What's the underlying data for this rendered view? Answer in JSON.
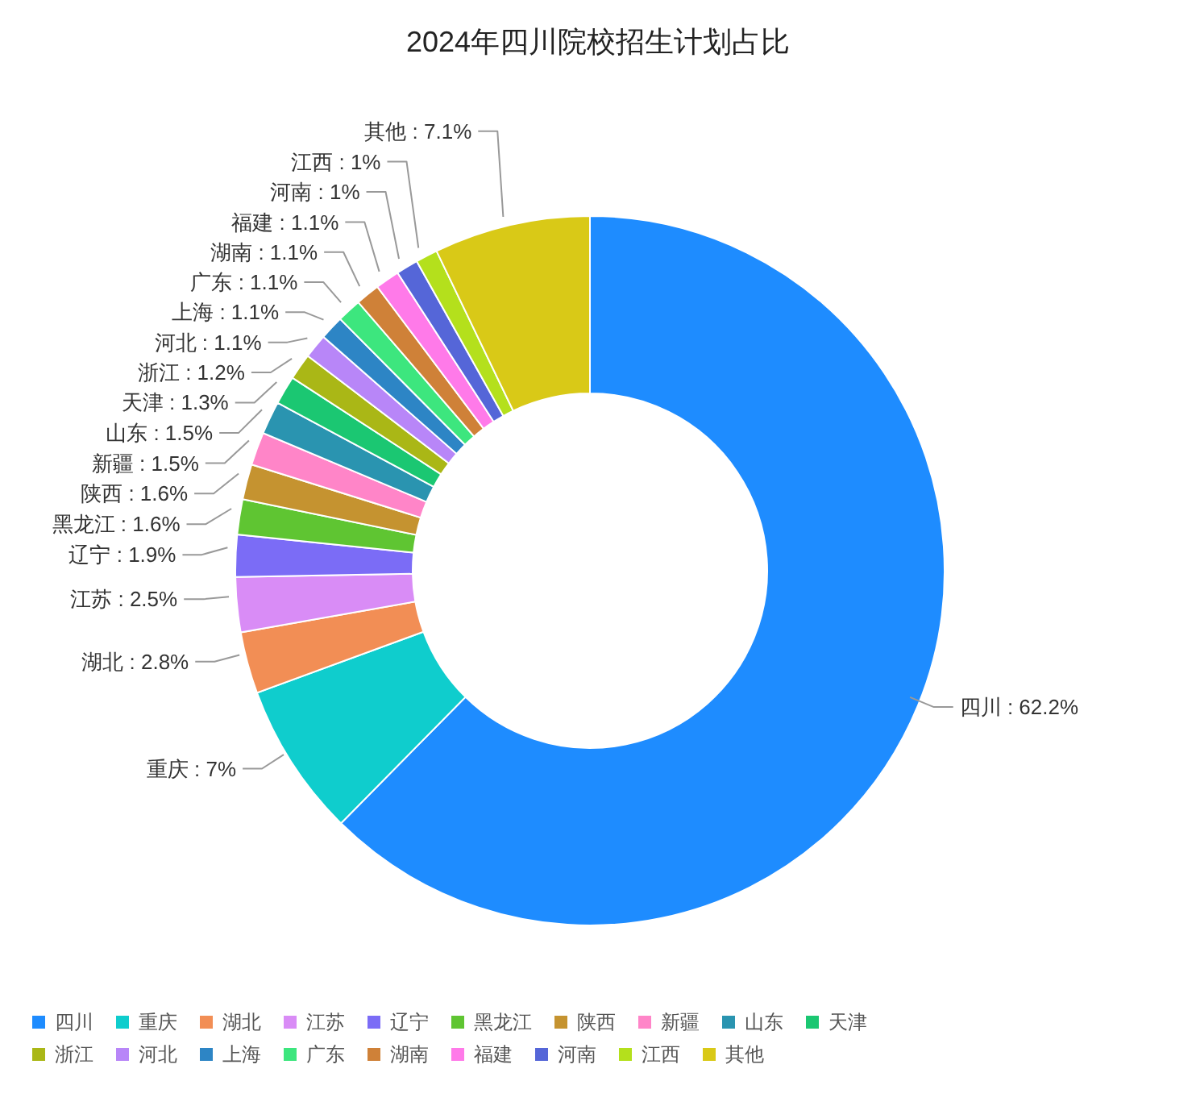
{
  "chart_data": {
    "type": "donut",
    "title": "2024年四川院校招生计划占比",
    "categories": [
      "四川",
      "重庆",
      "湖北",
      "江苏",
      "辽宁",
      "黑龙江",
      "陕西",
      "新疆",
      "山东",
      "天津",
      "浙江",
      "河北",
      "上海",
      "广东",
      "湖南",
      "福建",
      "河南",
      "江西",
      "其他"
    ],
    "values": [
      62.2,
      7,
      2.8,
      2.5,
      1.9,
      1.6,
      1.6,
      1.5,
      1.5,
      1.3,
      1.2,
      1.1,
      1.1,
      1.1,
      1.1,
      1.1,
      1,
      1,
      7.1
    ],
    "colors": [
      "#1e8cff",
      "#0fcdcd",
      "#f28e55",
      "#d98cf6",
      "#7b6cf6",
      "#5fc532",
      "#c59330",
      "#ff85c8",
      "#2a94b0",
      "#1bc772",
      "#aab716",
      "#b886f8",
      "#2d85c5",
      "#3de67e",
      "#cf8138",
      "#ff7ae9",
      "#5566d8",
      "#b4e01c",
      "#d9c917"
    ],
    "value_labels": [
      ": 62.2%",
      ": 7%",
      ": 2.8%",
      ": 2.5%",
      ": 1.9%",
      ": 1.6%",
      ": 1.6%",
      ": 1.5%",
      ": 1.5%",
      ": 1.3%",
      ": 1.2%",
      ": 1.1%",
      ": 1.1%",
      ": 1.1%",
      ": 1.1%",
      ": 1.1%",
      ": 1%",
      ": 1%",
      ": 7.1%"
    ],
    "legend": "bottom"
  }
}
